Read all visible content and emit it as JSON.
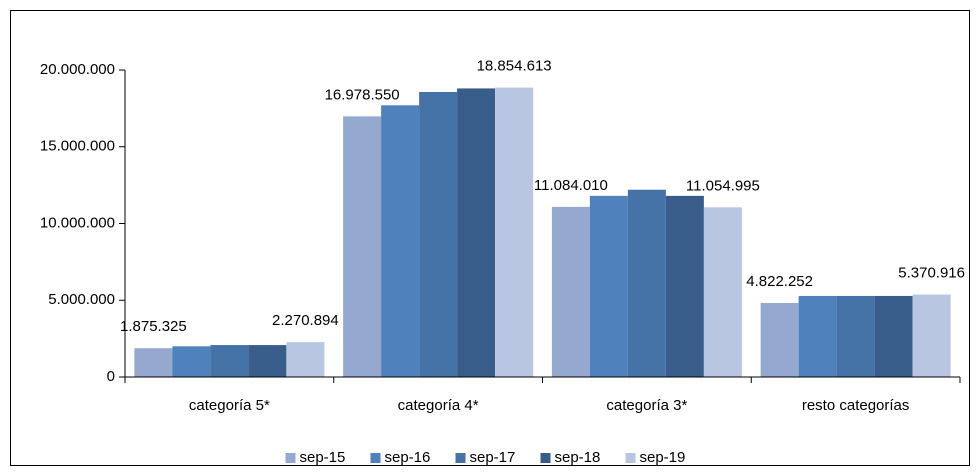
{
  "chart_data": {
    "type": "bar",
    "categories": [
      "categoría 5*",
      "categoría 4*",
      "categoría 3*",
      "resto categorías"
    ],
    "series": [
      {
        "name": "sep-15",
        "color": "#95a9d0",
        "values": [
          1875325,
          16978550,
          11084010,
          4822252
        ],
        "value_labels": [
          "1.875.325",
          "16.978.550",
          "11.084.010",
          "4.822.252"
        ]
      },
      {
        "name": "sep-16",
        "color": "#4f81bd",
        "values": [
          2000000,
          17700000,
          11800000,
          5280000
        ]
      },
      {
        "name": "sep-17",
        "color": "#4572a7",
        "values": [
          2080000,
          18570000,
          12200000,
          5280000
        ]
      },
      {
        "name": "sep-18",
        "color": "#385d8a",
        "values": [
          2080000,
          18800000,
          11800000,
          5280000
        ]
      },
      {
        "name": "sep-19",
        "color": "#b9c6e1",
        "values": [
          2270894,
          18854613,
          11054995,
          5370916
        ],
        "value_labels": [
          "2.270.894",
          "18.854.613",
          "11.054.995",
          "5.370.916"
        ]
      }
    ],
    "ylim": [
      0,
      20000000
    ],
    "yticks": [
      {
        "value": 0,
        "label": "0"
      },
      {
        "value": 5000000,
        "label": "5.000.000"
      },
      {
        "value": 10000000,
        "label": "10.000.000"
      },
      {
        "value": 15000000,
        "label": "15.000.000"
      },
      {
        "value": 20000000,
        "label": "20.000.000"
      }
    ],
    "legend": "bottom"
  }
}
